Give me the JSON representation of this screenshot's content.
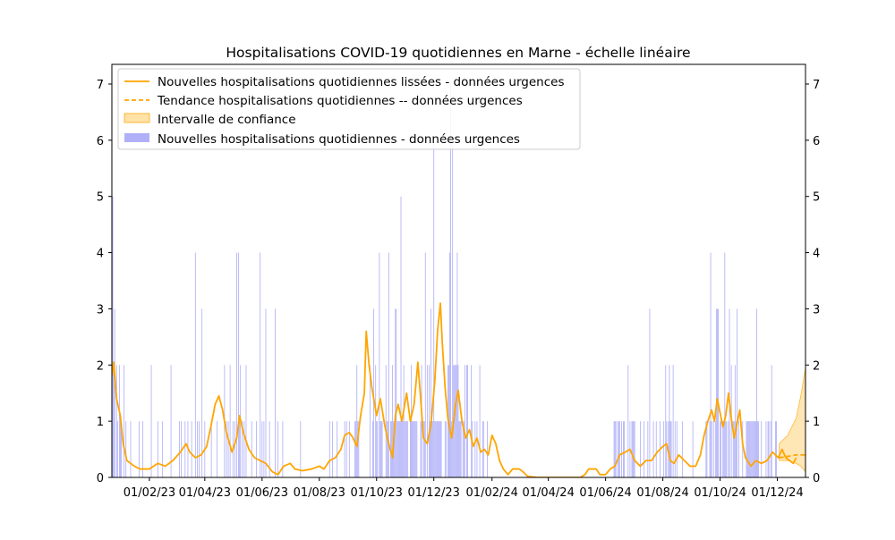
{
  "colors": {
    "bars": "#b0b0f8",
    "smoothed": "#ffa500",
    "confidence": "#ffe2a8",
    "confidence_edge": "#ffb733"
  },
  "chart_data": {
    "type": "bar",
    "title": "Hospitalisations COVID-19 quotidiennes en Marne - échelle linéaire",
    "xlabel": "",
    "ylabel": "",
    "ylim": [
      0,
      7.35
    ],
    "xlim": [
      "2022-12-23",
      "2024-12-31"
    ],
    "grid": false,
    "legend_position": "top-left",
    "y_ticks": [
      0,
      1,
      2,
      3,
      4,
      5,
      6,
      7
    ],
    "x_ticks": [
      {
        "date": "2023-02-01",
        "label": "01/02/23"
      },
      {
        "date": "2023-04-01",
        "label": "01/04/23"
      },
      {
        "date": "2023-06-01",
        "label": "01/06/23"
      },
      {
        "date": "2023-08-01",
        "label": "01/08/23"
      },
      {
        "date": "2023-10-01",
        "label": "01/10/23"
      },
      {
        "date": "2023-12-01",
        "label": "01/12/23"
      },
      {
        "date": "2024-02-01",
        "label": "01/02/24"
      },
      {
        "date": "2024-04-01",
        "label": "01/04/24"
      },
      {
        "date": "2024-06-01",
        "label": "01/06/24"
      },
      {
        "date": "2024-08-01",
        "label": "01/08/24"
      },
      {
        "date": "2024-10-01",
        "label": "01/10/24"
      },
      {
        "date": "2024-12-01",
        "label": "01/12/24"
      }
    ],
    "legend": [
      {
        "key": "smoothed",
        "label": "Nouvelles hospitalisations quotidiennes lissées - données urgences"
      },
      {
        "key": "trend",
        "label": "Tendance hospitalisations quotidiennes -- données urgences"
      },
      {
        "key": "confidence",
        "label": "Intervalle de confiance"
      },
      {
        "key": "bars",
        "label": "Nouvelles hospitalisations quotidiennes - données urgences"
      }
    ],
    "daily_bars": {
      "start_date": "2022-12-23",
      "description": "daily new hospitalisations, one value per day starting at start_date",
      "values": [
        2,
        5,
        2,
        3,
        0,
        2,
        1,
        0,
        2,
        1,
        1,
        0,
        0,
        2,
        0,
        1,
        0,
        0,
        0,
        0,
        1,
        0,
        0,
        0,
        0,
        0,
        0,
        0,
        0,
        1,
        0,
        0,
        0,
        1,
        0,
        0,
        0,
        0,
        0,
        0,
        0,
        0,
        2,
        0,
        0,
        0,
        0,
        0,
        0,
        1,
        0,
        0,
        0,
        0,
        1,
        0,
        0,
        0,
        0,
        0,
        0,
        0,
        0,
        2,
        0,
        0,
        0,
        0,
        0,
        0,
        0,
        0,
        1,
        0,
        1,
        0,
        0,
        0,
        1,
        0,
        0,
        1,
        0,
        0,
        0,
        1,
        0,
        0,
        0,
        4,
        0,
        1,
        0,
        1,
        0,
        0,
        3,
        0,
        0,
        1,
        0,
        0,
        0,
        0,
        0,
        0,
        1,
        0,
        0,
        0,
        0,
        0,
        1,
        0,
        0,
        0,
        0,
        0,
        0,
        0,
        2,
        0,
        1,
        0,
        1,
        0,
        2,
        0,
        0,
        1,
        0,
        1,
        0,
        4,
        0,
        4,
        1,
        2,
        0,
        1,
        0,
        1,
        0,
        2,
        0,
        0,
        0,
        0,
        0,
        1,
        0,
        0,
        0,
        0,
        1,
        0,
        0,
        0,
        4,
        0,
        1,
        0,
        1,
        0,
        3,
        0,
        0,
        0,
        1,
        0,
        0,
        0,
        0,
        0,
        3,
        0,
        0,
        1,
        0,
        0,
        0,
        0,
        1,
        0,
        0,
        0,
        0,
        0,
        0,
        0,
        0,
        0,
        0,
        0,
        0,
        0,
        0,
        0,
        0,
        0,
        0,
        1,
        0,
        0,
        0,
        0,
        0,
        0,
        0,
        0,
        0,
        0,
        0,
        0,
        0,
        0,
        0,
        0,
        0,
        0,
        0,
        0,
        0,
        0,
        0,
        0,
        0,
        0,
        0,
        0,
        0,
        0,
        1,
        0,
        0,
        1,
        0,
        0,
        0,
        0,
        1,
        0,
        0,
        0,
        0,
        0,
        0,
        0,
        1,
        0,
        1,
        0,
        0,
        1,
        0,
        0,
        0,
        0,
        0,
        1,
        1,
        2,
        1,
        1,
        0,
        0,
        0,
        0,
        0,
        0,
        0,
        0,
        0,
        0,
        0,
        2,
        0,
        0,
        1,
        3,
        0,
        2,
        1,
        1,
        0,
        4,
        1,
        1,
        1,
        0,
        0,
        0,
        2,
        1,
        1,
        4,
        0,
        1,
        1,
        2,
        1,
        1,
        3,
        3,
        1,
        1,
        1,
        1,
        5,
        1,
        1,
        2,
        1,
        1,
        1,
        1,
        0,
        0,
        1,
        2,
        1,
        1,
        1,
        1,
        1,
        1,
        0,
        0,
        0,
        1,
        2,
        0,
        1,
        1,
        4,
        0,
        2,
        0,
        2,
        1,
        3,
        1,
        1,
        6,
        1,
        1,
        1,
        1,
        1,
        1,
        1,
        1,
        0,
        0,
        0,
        1,
        1,
        0,
        2,
        2,
        4,
        7,
        1,
        6,
        2,
        2,
        2,
        2,
        4,
        2,
        1,
        1,
        1,
        0,
        1,
        1,
        2,
        0,
        2,
        2,
        0,
        0,
        0,
        2,
        1,
        0,
        0,
        1,
        0,
        1,
        0,
        0,
        2,
        0,
        0,
        1,
        1,
        0,
        0,
        0,
        1,
        0,
        0,
        0,
        0,
        0,
        0,
        0,
        0,
        0,
        0,
        0,
        0,
        0,
        0,
        0,
        0,
        0,
        0,
        0,
        0,
        0,
        0,
        0,
        0,
        0,
        0,
        0,
        0,
        0,
        0,
        0,
        0,
        0,
        0,
        0,
        0,
        0,
        0,
        0,
        0,
        0,
        0,
        0,
        0,
        0,
        0,
        0,
        0,
        0,
        0,
        0,
        0,
        0,
        0,
        0,
        0,
        0,
        0,
        0,
        0,
        0,
        0,
        0,
        0,
        0,
        0,
        0,
        0,
        0,
        0,
        0,
        0,
        0,
        0,
        0,
        0,
        0,
        0,
        0,
        0,
        0,
        0,
        0,
        0,
        0,
        0,
        0,
        0,
        0,
        0,
        0,
        0,
        0,
        0,
        0,
        0,
        0,
        0,
        0,
        0,
        0,
        0,
        0,
        0,
        0,
        0,
        0,
        0,
        0,
        0,
        0,
        0,
        0,
        0,
        0,
        0,
        0,
        0,
        0,
        0,
        0,
        0,
        0,
        0,
        0,
        0,
        0,
        0,
        0,
        0,
        0,
        0,
        0,
        0,
        1,
        1,
        1,
        0,
        1,
        1,
        1,
        0,
        1,
        0,
        1,
        1,
        0,
        0,
        0,
        2,
        0,
        1,
        0,
        1,
        1,
        1,
        1,
        0,
        0,
        0,
        0,
        0,
        1,
        0,
        0,
        0,
        1,
        0,
        0,
        0,
        1,
        0,
        3,
        0,
        0,
        0,
        1,
        0,
        0,
        1,
        0,
        0,
        0,
        1,
        0,
        0,
        0,
        1,
        0,
        2,
        1,
        0,
        1,
        2,
        1,
        1,
        0,
        2,
        0,
        1,
        0,
        1,
        0,
        0,
        0,
        0,
        0,
        1,
        0,
        0,
        0,
        0,
        0,
        0,
        0,
        0,
        0,
        0,
        1,
        0,
        0,
        0,
        0,
        0,
        0,
        0,
        0,
        0,
        0,
        0,
        0,
        0,
        1,
        1,
        0,
        0,
        1,
        4,
        1,
        0,
        1,
        0,
        1,
        3,
        3,
        3,
        0,
        1,
        1,
        0,
        1,
        1,
        4,
        1,
        1,
        0,
        1,
        3,
        0,
        2,
        0,
        1,
        1,
        2,
        1,
        3,
        0,
        1,
        0,
        0,
        0,
        1,
        0,
        0,
        0,
        1,
        1,
        1,
        1,
        1,
        1,
        1,
        1,
        1,
        1,
        1,
        3,
        1,
        1,
        0,
        0,
        1,
        0,
        0,
        0,
        0,
        1,
        0,
        1,
        1,
        0,
        1,
        2,
        0,
        0,
        0,
        1,
        1,
        0,
        0
      ]
    },
    "smoothed_series": {
      "name": "Nouvelles hospitalisations quotidiennes lissées - données urgences",
      "points": [
        [
          "2022-12-23",
          1.8
        ],
        [
          "2022-12-25",
          2.05
        ],
        [
          "2022-12-28",
          1.4
        ],
        [
          "2023-01-01",
          1.1
        ],
        [
          "2023-01-04",
          0.6
        ],
        [
          "2023-01-08",
          0.3
        ],
        [
          "2023-01-12",
          0.25
        ],
        [
          "2023-01-16",
          0.2
        ],
        [
          "2023-01-22",
          0.15
        ],
        [
          "2023-02-01",
          0.15
        ],
        [
          "2023-02-10",
          0.25
        ],
        [
          "2023-02-18",
          0.2
        ],
        [
          "2023-02-26",
          0.3
        ],
        [
          "2023-03-06",
          0.45
        ],
        [
          "2023-03-12",
          0.6
        ],
        [
          "2023-03-16",
          0.45
        ],
        [
          "2023-03-22",
          0.35
        ],
        [
          "2023-03-28",
          0.4
        ],
        [
          "2023-04-03",
          0.55
        ],
        [
          "2023-04-08",
          0.95
        ],
        [
          "2023-04-12",
          1.3
        ],
        [
          "2023-04-16",
          1.45
        ],
        [
          "2023-04-20",
          1.2
        ],
        [
          "2023-04-24",
          0.8
        ],
        [
          "2023-04-30",
          0.45
        ],
        [
          "2023-05-05",
          0.7
        ],
        [
          "2023-05-08",
          1.1
        ],
        [
          "2023-05-12",
          0.8
        ],
        [
          "2023-05-18",
          0.5
        ],
        [
          "2023-05-24",
          0.35
        ],
        [
          "2023-05-30",
          0.3
        ],
        [
          "2023-06-05",
          0.25
        ],
        [
          "2023-06-12",
          0.1
        ],
        [
          "2023-06-18",
          0.05
        ],
        [
          "2023-06-24",
          0.2
        ],
        [
          "2023-07-01",
          0.25
        ],
        [
          "2023-07-06",
          0.15
        ],
        [
          "2023-07-14",
          0.12
        ],
        [
          "2023-07-24",
          0.15
        ],
        [
          "2023-08-01",
          0.2
        ],
        [
          "2023-08-06",
          0.15
        ],
        [
          "2023-08-12",
          0.3
        ],
        [
          "2023-08-18",
          0.35
        ],
        [
          "2023-08-24",
          0.5
        ],
        [
          "2023-08-28",
          0.75
        ],
        [
          "2023-09-02",
          0.8
        ],
        [
          "2023-09-06",
          0.7
        ],
        [
          "2023-09-10",
          0.55
        ],
        [
          "2023-09-14",
          1.1
        ],
        [
          "2023-09-18",
          1.5
        ],
        [
          "2023-09-20",
          2.6
        ],
        [
          "2023-09-23",
          2.0
        ],
        [
          "2023-09-26",
          1.6
        ],
        [
          "2023-10-01",
          1.1
        ],
        [
          "2023-10-05",
          1.4
        ],
        [
          "2023-10-10",
          0.9
        ],
        [
          "2023-10-14",
          0.6
        ],
        [
          "2023-10-18",
          0.35
        ],
        [
          "2023-10-21",
          1.1
        ],
        [
          "2023-10-24",
          1.3
        ],
        [
          "2023-10-28",
          1.0
        ],
        [
          "2023-11-02",
          1.5
        ],
        [
          "2023-11-06",
          1.0
        ],
        [
          "2023-11-10",
          1.3
        ],
        [
          "2023-11-14",
          2.05
        ],
        [
          "2023-11-17",
          1.4
        ],
        [
          "2023-11-20",
          0.7
        ],
        [
          "2023-11-24",
          0.6
        ],
        [
          "2023-11-28",
          0.95
        ],
        [
          "2023-12-02",
          1.7
        ],
        [
          "2023-12-05",
          2.6
        ],
        [
          "2023-12-08",
          3.1
        ],
        [
          "2023-12-10",
          2.4
        ],
        [
          "2023-12-13",
          1.6
        ],
        [
          "2023-12-16",
          1.05
        ],
        [
          "2023-12-20",
          0.7
        ],
        [
          "2023-12-24",
          1.3
        ],
        [
          "2023-12-27",
          1.55
        ],
        [
          "2023-12-31",
          1.0
        ],
        [
          "2024-01-04",
          0.7
        ],
        [
          "2024-01-08",
          0.85
        ],
        [
          "2024-01-12",
          0.55
        ],
        [
          "2024-01-16",
          0.7
        ],
        [
          "2024-01-20",
          0.45
        ],
        [
          "2024-01-24",
          0.5
        ],
        [
          "2024-01-28",
          0.4
        ],
        [
          "2024-02-01",
          0.75
        ],
        [
          "2024-02-05",
          0.6
        ],
        [
          "2024-02-09",
          0.3
        ],
        [
          "2024-02-13",
          0.15
        ],
        [
          "2024-02-18",
          0.05
        ],
        [
          "2024-02-23",
          0.15
        ],
        [
          "2024-03-01",
          0.15
        ],
        [
          "2024-03-05",
          0.1
        ],
        [
          "2024-03-10",
          0.02
        ],
        [
          "2024-03-20",
          0.0
        ],
        [
          "2024-04-10",
          0.0
        ],
        [
          "2024-05-05",
          0.0
        ],
        [
          "2024-05-10",
          0.05
        ],
        [
          "2024-05-14",
          0.15
        ],
        [
          "2024-05-22",
          0.15
        ],
        [
          "2024-05-26",
          0.05
        ],
        [
          "2024-06-01",
          0.05
        ],
        [
          "2024-06-06",
          0.15
        ],
        [
          "2024-06-11",
          0.2
        ],
        [
          "2024-06-16",
          0.4
        ],
        [
          "2024-06-22",
          0.45
        ],
        [
          "2024-06-27",
          0.5
        ],
        [
          "2024-07-02",
          0.3
        ],
        [
          "2024-07-08",
          0.2
        ],
        [
          "2024-07-14",
          0.3
        ],
        [
          "2024-07-20",
          0.3
        ],
        [
          "2024-07-26",
          0.45
        ],
        [
          "2024-08-01",
          0.55
        ],
        [
          "2024-08-05",
          0.6
        ],
        [
          "2024-08-09",
          0.3
        ],
        [
          "2024-08-13",
          0.25
        ],
        [
          "2024-08-18",
          0.4
        ],
        [
          "2024-08-24",
          0.3
        ],
        [
          "2024-08-30",
          0.2
        ],
        [
          "2024-09-05",
          0.2
        ],
        [
          "2024-09-10",
          0.4
        ],
        [
          "2024-09-14",
          0.75
        ],
        [
          "2024-09-18",
          1.0
        ],
        [
          "2024-09-22",
          1.2
        ],
        [
          "2024-09-25",
          1.0
        ],
        [
          "2024-09-28",
          1.4
        ],
        [
          "2024-10-01",
          1.15
        ],
        [
          "2024-10-04",
          0.9
        ],
        [
          "2024-10-07",
          1.1
        ],
        [
          "2024-10-10",
          1.5
        ],
        [
          "2024-10-13",
          1.05
        ],
        [
          "2024-10-16",
          0.7
        ],
        [
          "2024-10-19",
          0.95
        ],
        [
          "2024-10-22",
          1.2
        ],
        [
          "2024-10-25",
          0.6
        ],
        [
          "2024-10-28",
          0.35
        ],
        [
          "2024-11-03",
          0.2
        ],
        [
          "2024-11-08",
          0.3
        ],
        [
          "2024-11-14",
          0.25
        ],
        [
          "2024-11-20",
          0.3
        ],
        [
          "2024-11-26",
          0.45
        ],
        [
          "2024-12-02",
          0.35
        ],
        [
          "2024-12-06",
          0.5
        ],
        [
          "2024-12-10",
          0.35
        ],
        [
          "2024-12-14",
          0.3
        ],
        [
          "2024-12-18",
          0.25
        ],
        [
          "2024-12-21",
          0.35
        ]
      ]
    },
    "trend_series": {
      "name": "Tendance hospitalisations quotidiennes -- données urgences",
      "points": [
        [
          "2024-12-03",
          0.35
        ],
        [
          "2024-12-21",
          0.4
        ],
        [
          "2024-12-31",
          0.4
        ]
      ]
    },
    "confidence_interval": {
      "name": "Intervalle de confiance",
      "upper": [
        [
          "2024-12-03",
          0.6
        ],
        [
          "2024-12-12",
          0.75
        ],
        [
          "2024-12-21",
          1.05
        ],
        [
          "2024-12-26",
          1.45
        ],
        [
          "2024-12-31",
          1.95
        ]
      ],
      "lower": [
        [
          "2024-12-03",
          0.3
        ],
        [
          "2024-12-12",
          0.3
        ],
        [
          "2024-12-21",
          0.25
        ],
        [
          "2024-12-26",
          0.2
        ],
        [
          "2024-12-31",
          0.1
        ]
      ]
    }
  }
}
